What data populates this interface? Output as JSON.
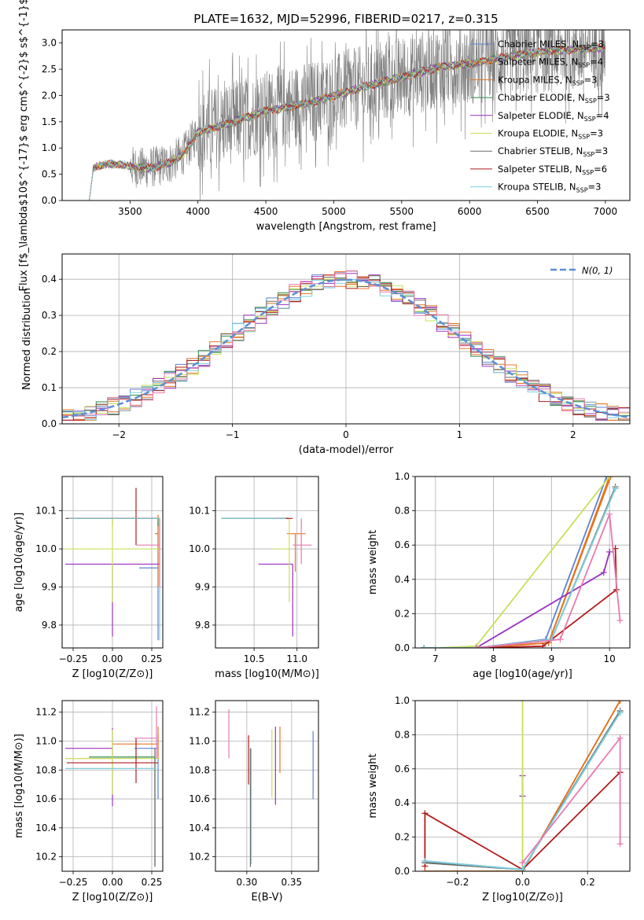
{
  "figure": {
    "title": "PLATE=1632, MJD=52996, FIBERID=0217, z=0.315"
  },
  "colors": {
    "chabrier_miles": "#5b83d1",
    "salpeter_miles": "#e8782a",
    "kroupa_miles": "#e0741e",
    "chabrier_elodie": "#2f8a4a",
    "salpeter_elodie": "#9a30c0",
    "kroupa_elodie": "#c8e058",
    "chabrier_stelib": "#6b6b6b",
    "salpeter_stelib": "#b21c1c",
    "kroupa_stelib": "#7fd0e0",
    "data": "#808080",
    "gauss": "#5b8fd6",
    "pink": "#e87ab0",
    "grid": "#b0b0b0"
  },
  "chart_data": [
    {
      "id": "spectrum",
      "type": "line",
      "title": "PLATE=1632, MJD=52996, FIBERID=0217, z=0.315",
      "xlabel": "wavelength [Angstrom, rest frame]",
      "ylabel": "Flux [f$_\\lambda$10$^{-17}$ erg cm$^{-2}$ s$^{-1}$ A$^{-1}$]",
      "xlim": [
        3000,
        7180
      ],
      "ylim": [
        0,
        3.25
      ],
      "x_ticks": [
        "3500",
        "4000",
        "4500",
        "5000",
        "5500",
        "6000",
        "6500",
        "7000"
      ],
      "y_ticks": [
        "0.0",
        "0.5",
        "1.0",
        "1.5",
        "2.0",
        "2.5",
        "3.0"
      ],
      "grid": false,
      "legend_position": "right",
      "legend": [
        {
          "label": "Chabrier MILES, N",
          "sub": "SSP",
          "suffix": "=3",
          "color_key": "chabrier_miles"
        },
        {
          "label": "Salpeter MILES, N",
          "sub": "SSP",
          "suffix": "=4",
          "color_key": "salpeter_miles"
        },
        {
          "label": "Kroupa MILES, N",
          "sub": "SSP",
          "suffix": "=3",
          "color_key": "kroupa_miles"
        },
        {
          "label": "Chabrier ELODIE, N",
          "sub": "SSP",
          "suffix": "=3",
          "color_key": "chabrier_elodie"
        },
        {
          "label": "Salpeter ELODIE, N",
          "sub": "SSP",
          "suffix": "=4",
          "color_key": "salpeter_elodie"
        },
        {
          "label": "Kroupa ELODIE, N",
          "sub": "SSP",
          "suffix": "=3",
          "color_key": "kroupa_elodie"
        },
        {
          "label": "Chabrier STELIB, N",
          "sub": "SSP",
          "suffix": "=3",
          "color_key": "chabrier_stelib"
        },
        {
          "label": "Salpeter STELIB, N",
          "sub": "SSP",
          "suffix": "=6",
          "color_key": "salpeter_stelib"
        },
        {
          "label": "Kroupa STELIB, N",
          "sub": "SSP",
          "suffix": "=3",
          "color_key": "kroupa_stelib"
        }
      ],
      "continuum_model": {
        "x": [
          3200,
          3230,
          3300,
          3400,
          3500,
          3600,
          3700,
          3800,
          3900,
          4000,
          4200,
          4500,
          4800,
          5000,
          5200,
          5500,
          5800,
          6000,
          6300,
          6600,
          6900,
          7000
        ],
        "y": [
          0.0,
          0.62,
          0.68,
          0.7,
          0.65,
          0.62,
          0.65,
          0.72,
          0.9,
          1.3,
          1.45,
          1.7,
          1.85,
          2.0,
          2.15,
          2.35,
          2.55,
          2.6,
          2.75,
          2.85,
          2.9,
          2.9
        ]
      }
    },
    {
      "id": "residuals",
      "type": "histogram",
      "xlabel": "(data-model)/error",
      "ylabel": "Normed distribution",
      "xlim": [
        -2.5,
        2.5
      ],
      "ylim": [
        0,
        0.47
      ],
      "x_ticks": [
        "−2",
        "−1",
        "0",
        "1",
        "2"
      ],
      "y_ticks": [
        "0.0",
        "0.1",
        "0.2",
        "0.3",
        "0.4"
      ],
      "grid": true,
      "legend_position": "top-right",
      "legend": [
        {
          "label": "N(0, 1)",
          "color_key": "gauss"
        }
      ],
      "bin_width": 0.1
    },
    {
      "id": "age_vs_Z",
      "type": "scatter",
      "xlabel": "Z [log10(Z/Z⊙)]",
      "ylabel": "age  [log10(age/yr)]",
      "xlim": [
        -0.32,
        0.32
      ],
      "ylim": [
        9.74,
        10.19
      ],
      "x_ticks": [
        "−0.25",
        "0.00",
        "0.25"
      ],
      "y_ticks": [
        "9.8",
        "9.9",
        "10.0",
        "10.1"
      ],
      "grid": true,
      "points": [
        {
          "model": "chabrier_miles",
          "x": 0.29,
          "y": 9.95,
          "xerr": [
            0.12,
            0.0
          ],
          "yerr": [
            0.19,
            0.12
          ]
        },
        {
          "model": "salpeter_miles",
          "x": 0.29,
          "y": 10.04,
          "xerr": [
            0.02,
            0.0
          ],
          "yerr": [
            0.14,
            0.05
          ]
        },
        {
          "model": "kroupa_miles",
          "x": 0.0,
          "y": 10.08,
          "xerr": [
            0.27,
            0.29
          ],
          "yerr": [
            0.02,
            0.0
          ]
        },
        {
          "model": "chabrier_elodie",
          "x": 0.29,
          "y": 10.08,
          "xerr": [
            0.58,
            0.0
          ],
          "yerr": [
            0.02,
            0.0
          ]
        },
        {
          "model": "salpeter_elodie",
          "x": 0.0,
          "y": 9.96,
          "xerr": [
            0.3,
            0.3
          ],
          "yerr": [
            0.19,
            0.0
          ]
        },
        {
          "model": "kroupa_elodie",
          "x": 0.0,
          "y": 10.0,
          "xerr": [
            0.3,
            0.3
          ],
          "yerr": [
            0.14,
            0.08
          ]
        },
        {
          "model": "chabrier_stelib",
          "x": 0.27,
          "y": 10.08,
          "xerr": [
            0.57,
            0.0
          ],
          "yerr": [
            0.0,
            0.0
          ]
        },
        {
          "model": "salpeter_stelib",
          "x": 0.15,
          "y": 10.08,
          "xerr": [
            0.44,
            0.15
          ],
          "yerr": [
            0.07,
            0.08
          ]
        },
        {
          "model": "kroupa_stelib",
          "x": 0.3,
          "y": 10.08,
          "xerr": [
            0.58,
            0.0
          ],
          "yerr": [
            0.32,
            0.0
          ]
        },
        {
          "model": "pink",
          "x": 0.3,
          "y": 10.01,
          "xerr": [
            0.15,
            0.0
          ],
          "yerr": [
            0.11,
            0.07
          ]
        }
      ]
    },
    {
      "id": "age_vs_mass",
      "type": "scatter",
      "xlabel": "mass [log10(M/M⊙)]",
      "xlim": [
        10.05,
        11.25
      ],
      "ylim": [
        9.74,
        10.19
      ],
      "x_ticks": [
        "10.5",
        "11.0"
      ],
      "y_ticks": [
        "9.8",
        "9.9",
        "10.0",
        "10.1"
      ],
      "grid": true,
      "points": [
        {
          "model": "chabrier_miles",
          "x": 10.88,
          "y": 10.08,
          "xerr": [
            0.76,
            0.0
          ],
          "yerr": [
            0.0,
            0.0
          ]
        },
        {
          "model": "salpeter_miles",
          "x": 10.98,
          "y": 10.04,
          "xerr": [
            0.1,
            0.12
          ],
          "yerr": [
            0.1,
            0.0
          ]
        },
        {
          "model": "kroupa_miles",
          "x": 10.88,
          "y": 10.08,
          "xerr": [
            0.03,
            0.03
          ],
          "yerr": [
            0.0,
            0.0
          ]
        },
        {
          "model": "chabrier_elodie",
          "x": 10.9,
          "y": 10.08,
          "xerr": [
            0.78,
            0.0
          ],
          "yerr": [
            0.0,
            0.0
          ]
        },
        {
          "model": "salpeter_elodie",
          "x": 10.95,
          "y": 9.96,
          "xerr": [
            0.4,
            0.0
          ],
          "yerr": [
            0.19,
            0.0
          ]
        },
        {
          "model": "kroupa_elodie",
          "x": 10.91,
          "y": 10.0,
          "xerr": [
            0.18,
            0.0
          ],
          "yerr": [
            0.14,
            0.08
          ]
        },
        {
          "model": "chabrier_stelib",
          "x": 10.88,
          "y": 10.08,
          "xerr": [
            0.75,
            0.0
          ],
          "yerr": [
            0.0,
            0.0
          ]
        },
        {
          "model": "salpeter_stelib",
          "x": 10.95,
          "y": 10.08,
          "xerr": [
            0.2,
            0.0
          ],
          "yerr": [
            0.0,
            0.0
          ]
        },
        {
          "model": "kroupa_stelib",
          "x": 10.87,
          "y": 10.08,
          "xerr": [
            0.75,
            0.0
          ],
          "yerr": [
            0.0,
            0.0
          ]
        },
        {
          "model": "pink",
          "x": 11.05,
          "y": 10.01,
          "xerr": [
            0.1,
            0.12
          ],
          "yerr": [
            0.05,
            0.07
          ]
        }
      ]
    },
    {
      "id": "cum_mass_age",
      "type": "line",
      "xlabel": "age  [log10(age/yr)]",
      "ylabel": "mass weight",
      "xlim": [
        6.65,
        10.35
      ],
      "ylim": [
        0,
        1
      ],
      "x_ticks": [
        "7",
        "8",
        "9",
        "10"
      ],
      "y_ticks": [
        "0.0",
        "0.2",
        "0.4",
        "0.6",
        "0.8",
        "1.0"
      ],
      "grid": true,
      "series": [
        {
          "model": "chabrier_miles",
          "x": [
            6.8,
            7.7,
            8.9,
            9.95
          ],
          "y": [
            0.0,
            0.0,
            0.05,
            1.0
          ]
        },
        {
          "model": "salpeter_miles",
          "x": [
            6.8,
            7.7,
            8.95,
            10.0
          ],
          "y": [
            0.0,
            0.0,
            0.03,
            1.0
          ]
        },
        {
          "model": "kroupa_miles",
          "x": [
            6.8,
            7.7,
            8.95,
            10.02
          ],
          "y": [
            0.0,
            0.0,
            0.03,
            1.0
          ]
        },
        {
          "model": "chabrier_elodie",
          "x": [
            6.8,
            7.7,
            9.0,
            10.1
          ],
          "y": [
            0.0,
            0.0,
            0.05,
            0.93
          ]
        },
        {
          "model": "salpeter_elodie",
          "x": [
            7.0,
            7.7,
            9.9,
            10.0,
            10.0
          ],
          "y": [
            0.0,
            0.0,
            0.44,
            0.56,
            0.56
          ]
        },
        {
          "model": "kroupa_elodie",
          "x": [
            7.0,
            7.7,
            10.0
          ],
          "y": [
            0.0,
            0.01,
            1.0
          ]
        },
        {
          "model": "chabrier_stelib",
          "x": [
            6.8,
            7.7,
            9.0,
            10.1
          ],
          "y": [
            0.0,
            0.0,
            0.05,
            0.94
          ]
        },
        {
          "model": "salpeter_stelib",
          "x": [
            7.7,
            8.85,
            10.12,
            10.1,
            10.1
          ],
          "y": [
            0.0,
            0.01,
            0.34,
            0.58,
            0.58
          ]
        },
        {
          "model": "kroupa_stelib",
          "x": [
            6.8,
            7.7,
            9.0,
            10.1
          ],
          "y": [
            0.0,
            0.0,
            0.05,
            0.93
          ]
        },
        {
          "model": "pink",
          "x": [
            7.7,
            9.15,
            10.0,
            10.18
          ],
          "y": [
            0.0,
            0.05,
            0.78,
            0.16
          ]
        }
      ]
    },
    {
      "id": "mass_vs_Z",
      "type": "scatter",
      "xlabel": "Z [log10(Z/Z⊙)]",
      "ylabel": "mass [log10(M/M⊙)]",
      "xlim": [
        -0.32,
        0.32
      ],
      "ylim": [
        10.1,
        11.28
      ],
      "x_ticks": [
        "−0.25",
        "0.00",
        "0.25"
      ],
      "y_ticks": [
        "10.2",
        "10.4",
        "10.6",
        "10.8",
        "11.0",
        "11.2"
      ],
      "grid": true,
      "points": [
        {
          "model": "chabrier_miles",
          "x": 0.29,
          "y": 10.95,
          "xerr": [
            0.15,
            0.0
          ],
          "yerr": [
            0.35,
            0.1
          ]
        },
        {
          "model": "salpeter_miles",
          "x": 0.29,
          "y": 10.98,
          "xerr": [
            0.29,
            0.0
          ],
          "yerr": [
            0.1,
            0.12
          ]
        },
        {
          "model": "kroupa_miles",
          "x": 0.0,
          "y": 10.88,
          "xerr": [
            0.3,
            0.0
          ],
          "yerr": [
            0.0,
            0.0
          ]
        },
        {
          "model": "chabrier_elodie",
          "x": 0.27,
          "y": 10.89,
          "xerr": [
            0.42,
            0.0
          ],
          "yerr": [
            0.75,
            0.0
          ]
        },
        {
          "model": "salpeter_elodie",
          "x": 0.0,
          "y": 10.95,
          "xerr": [
            0.3,
            0.0
          ],
          "yerr": [
            0.4,
            0.14
          ]
        },
        {
          "model": "kroupa_elodie",
          "x": 0.0,
          "y": 10.88,
          "xerr": [
            0.3,
            0.3
          ],
          "yerr": [
            0.25,
            0.2
          ]
        },
        {
          "model": "chabrier_stelib",
          "x": 0.27,
          "y": 10.81,
          "xerr": [
            0.57,
            0.0
          ],
          "yerr": [
            0.68,
            0.14
          ]
        },
        {
          "model": "salpeter_stelib",
          "x": 0.15,
          "y": 10.85,
          "xerr": [
            0.44,
            0.14
          ],
          "yerr": [
            0.14,
            0.17
          ]
        },
        {
          "model": "kroupa_stelib",
          "x": 0.28,
          "y": 10.81,
          "xerr": [
            0.58,
            0.0
          ],
          "yerr": [
            0.0,
            0.0
          ]
        },
        {
          "model": "pink",
          "x": 0.28,
          "y": 11.02,
          "xerr": [
            0.14,
            0.0
          ],
          "yerr": [
            0.14,
            0.22
          ]
        }
      ]
    },
    {
      "id": "mass_vs_ebv",
      "type": "scatter",
      "xlabel": "E(B-V)",
      "xlim": [
        0.265,
        0.38
      ],
      "ylim": [
        10.1,
        11.28
      ],
      "x_ticks": [
        "0.30",
        "0.35"
      ],
      "y_ticks": [
        "10.2",
        "10.4",
        "10.6",
        "10.8",
        "11.0",
        "11.2"
      ],
      "grid": true,
      "points": [
        {
          "model": "chabrier_miles",
          "x": 0.374,
          "y": 10.8,
          "yerr": [
            0.2,
            0.27
          ]
        },
        {
          "model": "salpeter_miles",
          "x": 0.337,
          "y": 10.98,
          "yerr": [
            0.2,
            0.12
          ]
        },
        {
          "model": "salpeter_elodie",
          "x": 0.332,
          "y": 10.9,
          "yerr": [
            0.34,
            0.2
          ]
        },
        {
          "model": "kroupa_elodie",
          "x": 0.328,
          "y": 10.88,
          "yerr": [
            0.27,
            0.2
          ]
        },
        {
          "model": "chabrier_stelib",
          "x": 0.304,
          "y": 10.83,
          "yerr": [
            0.7,
            0.12
          ]
        },
        {
          "model": "salpeter_stelib",
          "x": 0.302,
          "y": 10.87,
          "yerr": [
            0.17,
            0.17
          ]
        },
        {
          "model": "kroupa_stelib",
          "x": 0.305,
          "y": 10.55,
          "yerr": [
            0.4,
            0.4
          ]
        },
        {
          "model": "pink",
          "x": 0.28,
          "y": 11.05,
          "yerr": [
            0.17,
            0.17
          ]
        }
      ]
    },
    {
      "id": "cum_mass_Z",
      "type": "line",
      "xlabel": "Z [log10(Z/Z⊙)]",
      "ylabel": "mass weight",
      "xlim": [
        -0.33,
        0.33
      ],
      "ylim": [
        0,
        1
      ],
      "x_ticks": [
        "−0.2",
        "0.0",
        "0.2"
      ],
      "y_ticks": [
        "0.0",
        "0.2",
        "0.4",
        "0.6",
        "0.8",
        "1.0"
      ],
      "grid": true,
      "series": [
        {
          "model": "chabrier_miles",
          "x": [
            -0.3,
            0.0,
            0.3
          ],
          "y": [
            0.06,
            0.01,
            0.94
          ]
        },
        {
          "model": "salpeter_miles",
          "x": [
            -0.3,
            0.0,
            0.3
          ],
          "y": [
            0.0,
            0.0,
            1.0
          ]
        },
        {
          "model": "kroupa_miles",
          "x": [
            -0.3,
            0.0,
            0.3
          ],
          "y": [
            0.0,
            0.0,
            1.0
          ]
        },
        {
          "model": "chabrier_elodie",
          "x": [
            -0.3,
            0.0,
            0.3
          ],
          "y": [
            0.05,
            0.01,
            0.93
          ]
        },
        {
          "model": "salpeter_elodie",
          "x": [
            0.0,
            0.0
          ],
          "y": [
            0.44,
            0.56
          ]
        },
        {
          "model": "kroupa_elodie",
          "x": [
            0.0,
            0.0,
            0.0
          ],
          "y": [
            0.0,
            0.05,
            1.0
          ]
        },
        {
          "model": "chabrier_stelib",
          "x": [
            -0.3,
            0.0,
            0.3
          ],
          "y": [
            0.05,
            0.01,
            0.94
          ]
        },
        {
          "model": "salpeter_stelib",
          "x": [
            -0.3,
            -0.3,
            0.0,
            0.3,
            0.3
          ],
          "y": [
            0.03,
            0.34,
            0.01,
            0.58,
            0.58
          ]
        },
        {
          "model": "kroupa_stelib",
          "x": [
            -0.3,
            0.0,
            0.3
          ],
          "y": [
            0.06,
            0.01,
            0.93
          ]
        },
        {
          "model": "pink",
          "x": [
            0.0,
            0.3,
            0.3
          ],
          "y": [
            0.05,
            0.78,
            0.16
          ]
        }
      ]
    }
  ]
}
